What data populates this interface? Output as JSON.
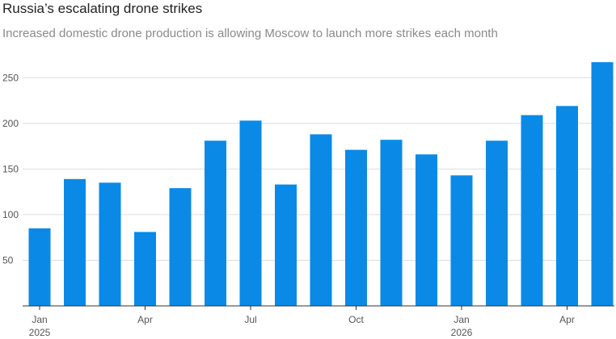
{
  "header": {
    "title": "Russia’s escalating drone strikes",
    "subtitle": "Increased domestic drone production is allowing Moscow to launch more strikes each month"
  },
  "chart_data": {
    "type": "bar",
    "title": "Russia’s escalating drone strikes",
    "subtitle": "Increased domestic drone production is allowing Moscow to launch more strikes each month",
    "xlabel": "",
    "ylabel": "",
    "categories": [
      "2025-01",
      "2025-02",
      "2025-03",
      "2025-04",
      "2025-05",
      "2025-06",
      "2025-07",
      "2025-08",
      "2025-09",
      "2025-10",
      "2025-11",
      "2025-12",
      "2026-01",
      "2026-02",
      "2026-03",
      "2026-04",
      "2026-05"
    ],
    "values": [
      85,
      139,
      135,
      81,
      129,
      181,
      203,
      133,
      188,
      171,
      182,
      166,
      143,
      181,
      209,
      219,
      267
    ],
    "ylim": [
      0,
      275
    ],
    "yticks": [
      50,
      100,
      150,
      200,
      250
    ],
    "x_tick_labels": [
      {
        "index": 0,
        "line1": "Jan",
        "line2": "2025"
      },
      {
        "index": 3,
        "line1": "Apr",
        "line2": ""
      },
      {
        "index": 6,
        "line1": "Jul",
        "line2": ""
      },
      {
        "index": 9,
        "line1": "Oct",
        "line2": ""
      },
      {
        "index": 12,
        "line1": "Jan",
        "line2": "2026"
      },
      {
        "index": 15,
        "line1": "Apr",
        "line2": ""
      }
    ],
    "bar_color": "#0a8ae6",
    "grid": true,
    "legend": "none"
  }
}
